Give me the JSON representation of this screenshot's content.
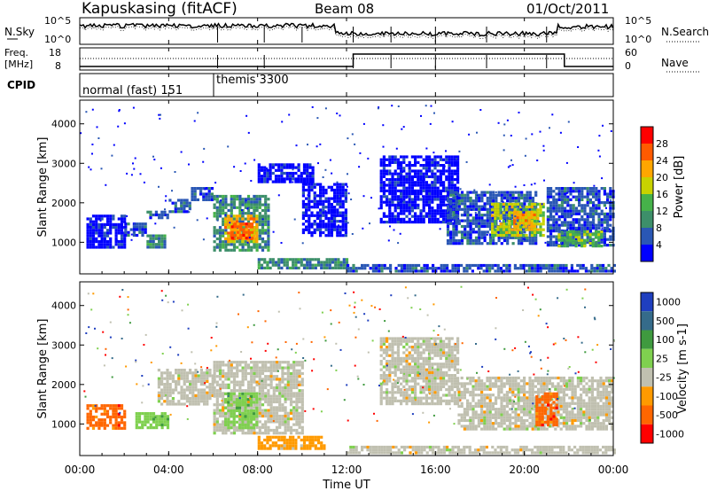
{
  "header": {
    "station": "Kapuskasing (fitACF)",
    "beam": "Beam 08",
    "date": "01/Oct/2011"
  },
  "noise_panel": {
    "left_label": "N.Sky",
    "right_label": "N.Search",
    "ytick_top": "10^5",
    "ytick_bottom": "10^0",
    "rtick_top": "10^5",
    "rtick_bottom": "10^0"
  },
  "freq_panel": {
    "left_label_1": "Freq.",
    "left_label_2": "[MHz]",
    "ytick_top": "18",
    "ytick_bottom": "8",
    "right_label": "Nave",
    "rtick_top": "60",
    "rtick_bottom": "0"
  },
  "cpid": {
    "label": "CPID",
    "mode1": "normal (fast) 151",
    "mode2": "themis 3300"
  },
  "power_panel": {
    "ylabel": "Slant Range [km]",
    "yticks": [
      "1000",
      "2000",
      "3000",
      "4000"
    ],
    "colorbar_label": "Power [dB]",
    "colorbar_ticks": [
      "4",
      "8",
      "12",
      "16",
      "20",
      "24",
      "28"
    ]
  },
  "velocity_panel": {
    "ylabel": "Slant Range [km]",
    "yticks": [
      "1000",
      "2000",
      "3000",
      "4000"
    ],
    "colorbar_label": "Velocity [m s-1]",
    "colorbar_ticks": [
      "1000",
      "500",
      "100",
      "25",
      "-25",
      "-100",
      "-500",
      "-1000"
    ]
  },
  "xaxis": {
    "label": "Time UT",
    "ticks": [
      "00:00",
      "04:00",
      "08:00",
      "12:00",
      "16:00",
      "20:00",
      "00:00"
    ]
  },
  "colors": {
    "power_scale": [
      "#0000ff",
      "#2a57b5",
      "#3d8f6a",
      "#46b24a",
      "#c8d200",
      "#ffa600",
      "#ff5a00",
      "#ff0000"
    ],
    "velocity_scale": [
      "#1f3fbf",
      "#356b8a",
      "#3f9a3f",
      "#7fd04f",
      "#c0c0b0",
      "#ff9a00",
      "#ff6600",
      "#ff0000"
    ]
  },
  "chart_data": [
    {
      "type": "heatmap",
      "title": "Power",
      "xlabel": "Time UT",
      "ylabel": "Slant Range [km]",
      "xlim": [
        "00:00",
        "24:00"
      ],
      "ylim": [
        200,
        4600
      ],
      "color_range_db": [
        0,
        30
      ],
      "regions": [
        {
          "t0": 0.3,
          "t1": 2.0,
          "r0": 900,
          "r1": 1700,
          "level": 4
        },
        {
          "t0": 2.0,
          "t1": 3.0,
          "r0": 1200,
          "r1": 1500,
          "level": 8
        },
        {
          "t0": 3.0,
          "t1": 4.0,
          "r0": 1600,
          "r1": 1800,
          "level": 8
        },
        {
          "t0": 4.0,
          "t1": 5.0,
          "r0": 1800,
          "r1": 2100,
          "level": 8
        },
        {
          "t0": 5.0,
          "t1": 6.0,
          "r0": 2100,
          "r1": 2400,
          "level": 8
        },
        {
          "t0": 3.0,
          "t1": 3.8,
          "r0": 900,
          "r1": 1200,
          "level": 12
        },
        {
          "t0": 6.0,
          "t1": 8.5,
          "r0": 800,
          "r1": 2200,
          "level": 12
        },
        {
          "t0": 6.5,
          "t1": 8.0,
          "r0": 1000,
          "r1": 1700,
          "level": 24
        },
        {
          "t0": 6.8,
          "t1": 7.8,
          "r0": 1100,
          "r1": 1500,
          "level": 28
        },
        {
          "t0": 8.0,
          "t1": 10.5,
          "r0": 2500,
          "r1": 3000,
          "level": 4
        },
        {
          "t0": 10.0,
          "t1": 12.0,
          "r0": 1200,
          "r1": 2500,
          "level": 4
        },
        {
          "t0": 8.0,
          "t1": 12.0,
          "r0": 350,
          "r1": 600,
          "level": 12
        },
        {
          "t0": 12.0,
          "t1": 24.0,
          "r0": 300,
          "r1": 450,
          "level": 8
        },
        {
          "t0": 13.5,
          "t1": 17.0,
          "r0": 1500,
          "r1": 3200,
          "level": 4
        },
        {
          "t0": 16.5,
          "t1": 20.5,
          "r0": 1000,
          "r1": 2300,
          "level": 8
        },
        {
          "t0": 18.5,
          "t1": 20.8,
          "r0": 1200,
          "r1": 2000,
          "level": 20
        },
        {
          "t0": 19.5,
          "t1": 20.5,
          "r0": 1400,
          "r1": 1800,
          "level": 24
        },
        {
          "t0": 21.0,
          "t1": 24.0,
          "r0": 900,
          "r1": 2400,
          "level": 8
        },
        {
          "t0": 21.5,
          "t1": 23.5,
          "r0": 900,
          "r1": 1300,
          "level": 16
        }
      ]
    },
    {
      "type": "heatmap",
      "title": "Velocity",
      "xlabel": "Time UT",
      "ylabel": "Slant Range [km]",
      "xlim": [
        "00:00",
        "24:00"
      ],
      "ylim": [
        200,
        4600
      ],
      "color_range_ms": [
        -1000,
        1000
      ],
      "regions": [
        {
          "t0": 0.3,
          "t1": 2.0,
          "r0": 900,
          "r1": 1500,
          "velocity": -200
        },
        {
          "t0": 2.5,
          "t1": 4.0,
          "r0": 900,
          "r1": 1300,
          "velocity": 100
        },
        {
          "t0": 3.5,
          "t1": 6.0,
          "r0": 1500,
          "r1": 2400,
          "velocity": 0
        },
        {
          "t0": 6.0,
          "t1": 10.0,
          "r0": 800,
          "r1": 2600,
          "velocity": 0
        },
        {
          "t0": 6.5,
          "t1": 8.0,
          "r0": 900,
          "r1": 1800,
          "velocity": 100
        },
        {
          "t0": 8.0,
          "t1": 11.0,
          "r0": 350,
          "r1": 700,
          "velocity": -100
        },
        {
          "t0": 12.0,
          "t1": 24.0,
          "r0": 300,
          "r1": 450,
          "velocity": 0
        },
        {
          "t0": 13.5,
          "t1": 17.0,
          "r0": 1500,
          "r1": 3200,
          "velocity": 0
        },
        {
          "t0": 17.0,
          "t1": 24.0,
          "r0": 900,
          "r1": 2200,
          "velocity": 0
        },
        {
          "t0": 20.5,
          "t1": 21.5,
          "r0": 1000,
          "r1": 1800,
          "velocity": -500
        }
      ]
    }
  ]
}
